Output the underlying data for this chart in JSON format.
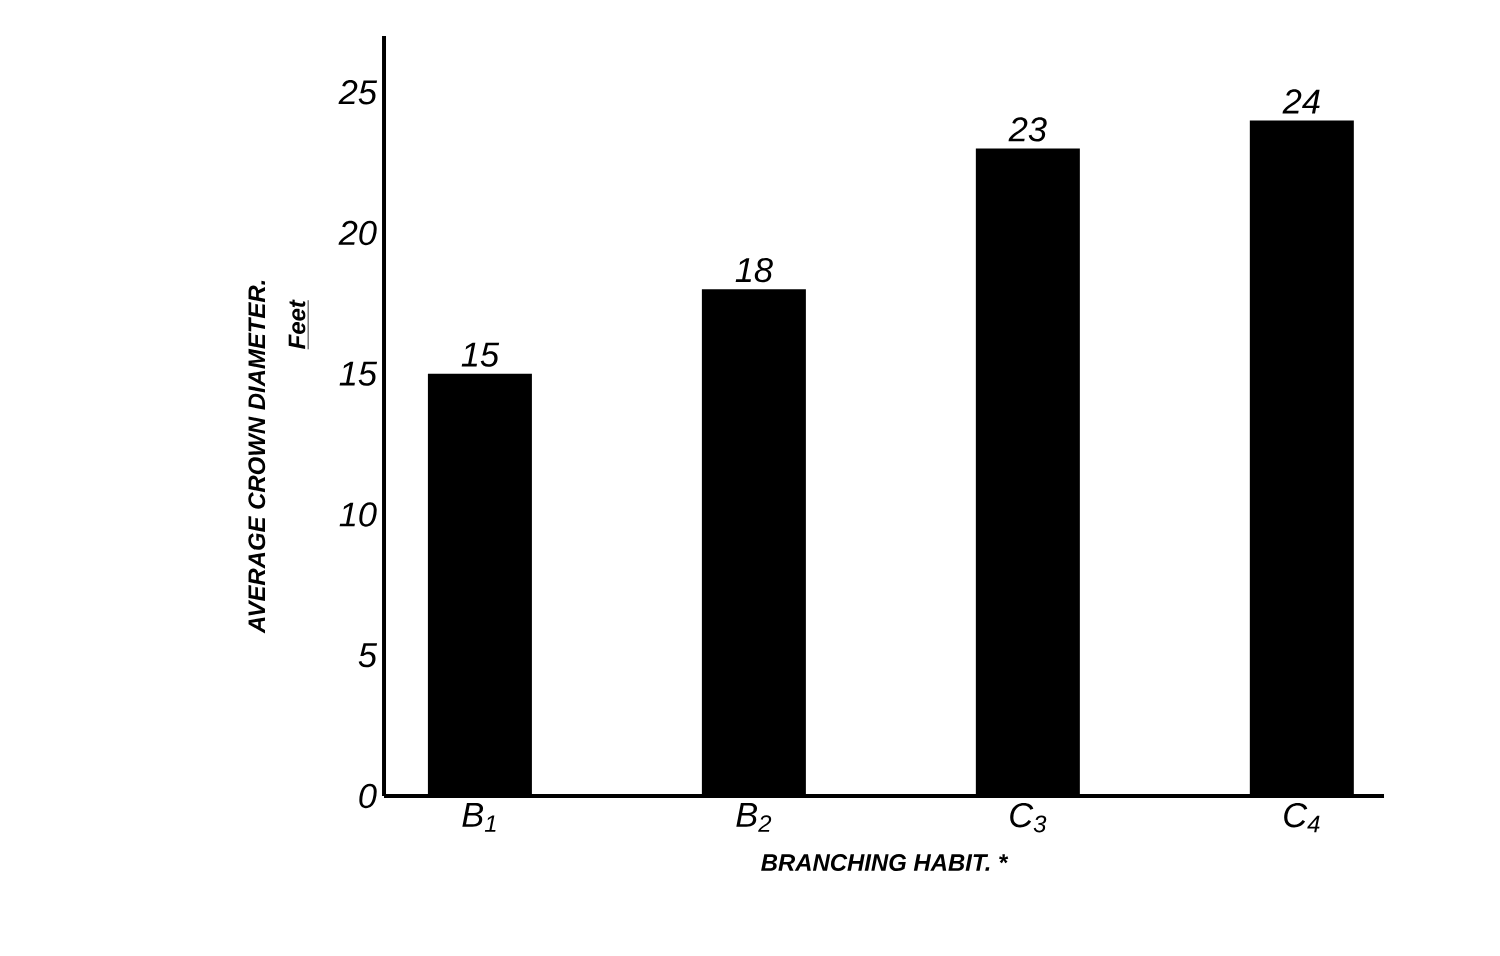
{
  "chart_data": {
    "type": "bar",
    "xlabel": "BRANCHING HABIT. *",
    "ylabel": "AVERAGE CROWN DIAMETER.",
    "annotations": [
      "Feet"
    ],
    "categories": [
      "B$_{1}$",
      "B$_{2}$",
      "C$_{3}$",
      "C$_{4}$"
    ],
    "values": [
      15,
      18,
      23,
      24
    ],
    "color": "#000000",
    "ylim": [
      0,
      27
    ],
    "yticks": [
      0,
      5,
      10,
      15,
      20,
      25
    ],
    "grid": false,
    "data_labels": true
  }
}
